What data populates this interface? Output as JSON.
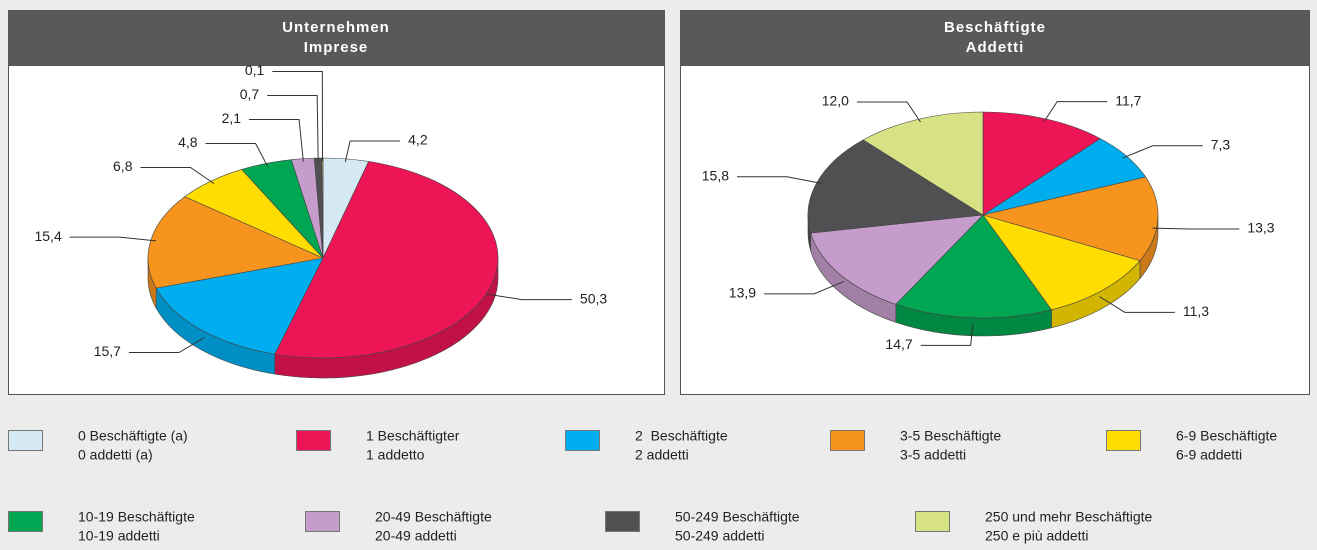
{
  "legend": {
    "items": [
      {
        "de": "0 Beschäftigte (a)",
        "it": "0 addetti (a)",
        "color": "#d5e9f5"
      },
      {
        "de": "1 Beschäftigter",
        "it": "1 addetto",
        "color": "#ed1556"
      },
      {
        "de": "2  Beschäftigte",
        "it": "2 addetti",
        "color": "#00aeef"
      },
      {
        "de": "3-5 Beschäftigte",
        "it": "3-5 addetti",
        "color": "#f7941d"
      },
      {
        "de": "6-9 Beschäftigte",
        "it": "6-9 addetti",
        "color": "#ffdd00"
      },
      {
        "de": "10-19 Beschäftigte",
        "it": "10-19 addetti",
        "color": "#00a651"
      },
      {
        "de": "20-49 Beschäftigte",
        "it": "20-49 addetti",
        "color": "#c59ccb"
      },
      {
        "de": "50-249 Beschäftigte",
        "it": "50-249 addetti",
        "color": "#505053"
      },
      {
        "de": "250 und mehr Beschäftigte",
        "it": "250 e più addetti",
        "color": "#d6e283"
      }
    ]
  },
  "chart_data": [
    {
      "type": "pie",
      "title": [
        "Unternehmen",
        "Imprese"
      ],
      "values": [
        4.2,
        50.3,
        15.7,
        15.4,
        6.8,
        4.8,
        2.1,
        0.7,
        0.1
      ],
      "value_labels": [
        "4,2",
        "50,3",
        "15,7",
        "15,4",
        "6,8",
        "4,8",
        "2,1",
        "0,7",
        "0,1"
      ]
    },
    {
      "type": "pie",
      "title": [
        "Beschäftigte",
        "Addetti"
      ],
      "values": [
        null,
        11.7,
        7.3,
        13.3,
        11.3,
        14.7,
        13.9,
        15.8,
        12.0
      ],
      "value_labels": [
        null,
        "11,7",
        "7,3",
        "13,3",
        "11,3",
        "14,7",
        "13,9",
        "15,8",
        "12,0"
      ]
    }
  ]
}
